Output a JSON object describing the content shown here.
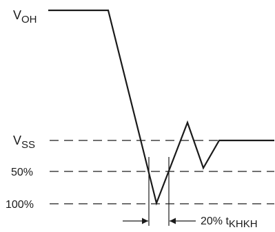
{
  "levels": {
    "voh": {
      "main": "V",
      "sub": "OH"
    },
    "vss": {
      "main": "V",
      "sub": "SS"
    },
    "pct50": "50%",
    "pct100": "100%"
  },
  "timing": {
    "main": "20% t",
    "sub": "KHKH"
  }
}
